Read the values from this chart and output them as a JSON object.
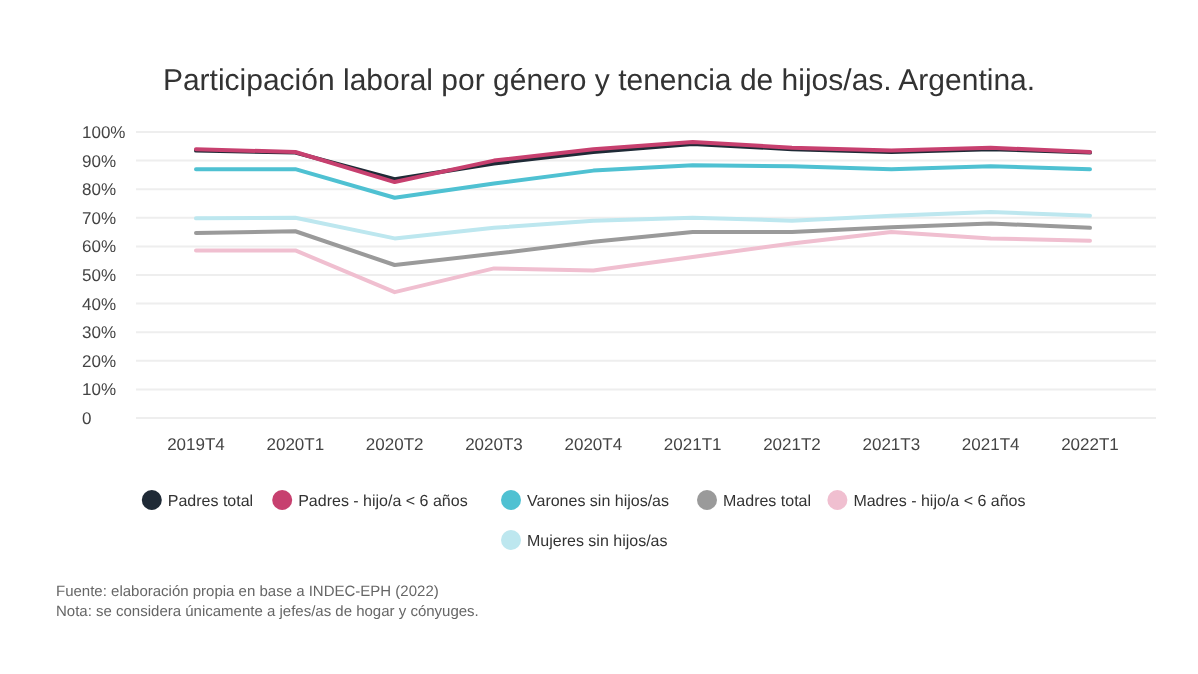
{
  "chart_data": {
    "type": "line",
    "title": "Participación laboral por género y tenencia de hijos/as. Argentina.",
    "categories": [
      "2019T4",
      "2020T1",
      "2020T2",
      "2020T3",
      "2020T4",
      "2021T1",
      "2021T2",
      "2021T3",
      "2021T4",
      "2022T1"
    ],
    "series": [
      {
        "name": "Padres total",
        "color": "#1f2a36",
        "values": [
          93.5,
          92.8,
          83.5,
          89,
          93,
          95.8,
          94,
          93,
          94,
          92.8
        ]
      },
      {
        "name": "Padres - hijo/a < 6 años",
        "color": "#c7406f",
        "values": [
          94,
          93,
          82.5,
          90,
          94,
          96.5,
          94.5,
          93.5,
          94.5,
          93
        ]
      },
      {
        "name": "Varones sin hijos/as",
        "color": "#4fc1d2",
        "values": [
          87,
          87,
          77,
          82,
          86.5,
          88.4,
          88,
          87,
          88,
          87
        ]
      },
      {
        "name": "Madres total",
        "color": "#9a9a9a",
        "values": [
          64.7,
          65.3,
          53.5,
          57.4,
          61.6,
          65,
          65,
          66.7,
          68,
          66.5
        ]
      },
      {
        "name": "Madres - hijo/a < 6 años",
        "color": "#f0bfd0",
        "values": [
          58.6,
          58.6,
          44,
          52.3,
          51.6,
          56.3,
          61,
          65,
          62.8,
          62
        ]
      },
      {
        "name": "Mujeres sin hijos/as",
        "color": "#bde7ef",
        "values": [
          69.8,
          70,
          62.8,
          66.5,
          69,
          70,
          69,
          70.7,
          72,
          70.7
        ]
      }
    ],
    "ylim": [
      0,
      100
    ],
    "yticks": [
      {
        "value": 0,
        "label": "0"
      },
      {
        "value": 10,
        "label": "10%"
      },
      {
        "value": 20,
        "label": "20%"
      },
      {
        "value": 30,
        "label": "30%"
      },
      {
        "value": 40,
        "label": "40%"
      },
      {
        "value": 50,
        "label": "50%"
      },
      {
        "value": 60,
        "label": "60%"
      },
      {
        "value": 70,
        "label": "70%"
      },
      {
        "value": 80,
        "label": "80%"
      },
      {
        "value": 90,
        "label": "90%"
      },
      {
        "value": 100,
        "label": "100%"
      }
    ],
    "grid": "y",
    "legend": "bottom",
    "marker": "none",
    "line_style": "solid",
    "annotations": [
      "Fuente: elaboración propia en base a INDEC-EPH (2022)",
      "Nota: se considera únicamente a jefes/as de hogar y cónyuges."
    ]
  }
}
